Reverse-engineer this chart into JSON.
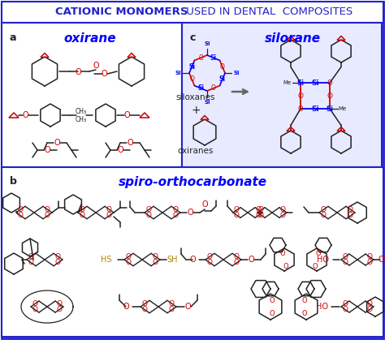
{
  "bg": "#FFFFFF",
  "border": "#2222CC",
  "blue": "#2222CC",
  "mblue": "#0000FF",
  "red": "#CC0000",
  "dark": "#222222",
  "gray": "#666666",
  "cbg": "#E8EAFF",
  "title_bold": "CATIONIC MONOMERS",
  "title_rest": " USED IN DENTAL  COMPOSITES",
  "sec_a": "a",
  "sec_b": "b",
  "sec_c": "c",
  "name_a": "oxirane",
  "name_b": "spiro-orthocarbonate",
  "name_c": "silorane",
  "lbl_siloxanes": "siloxanes",
  "lbl_oxiranes": "oxiranes",
  "lbl_plus": "+"
}
